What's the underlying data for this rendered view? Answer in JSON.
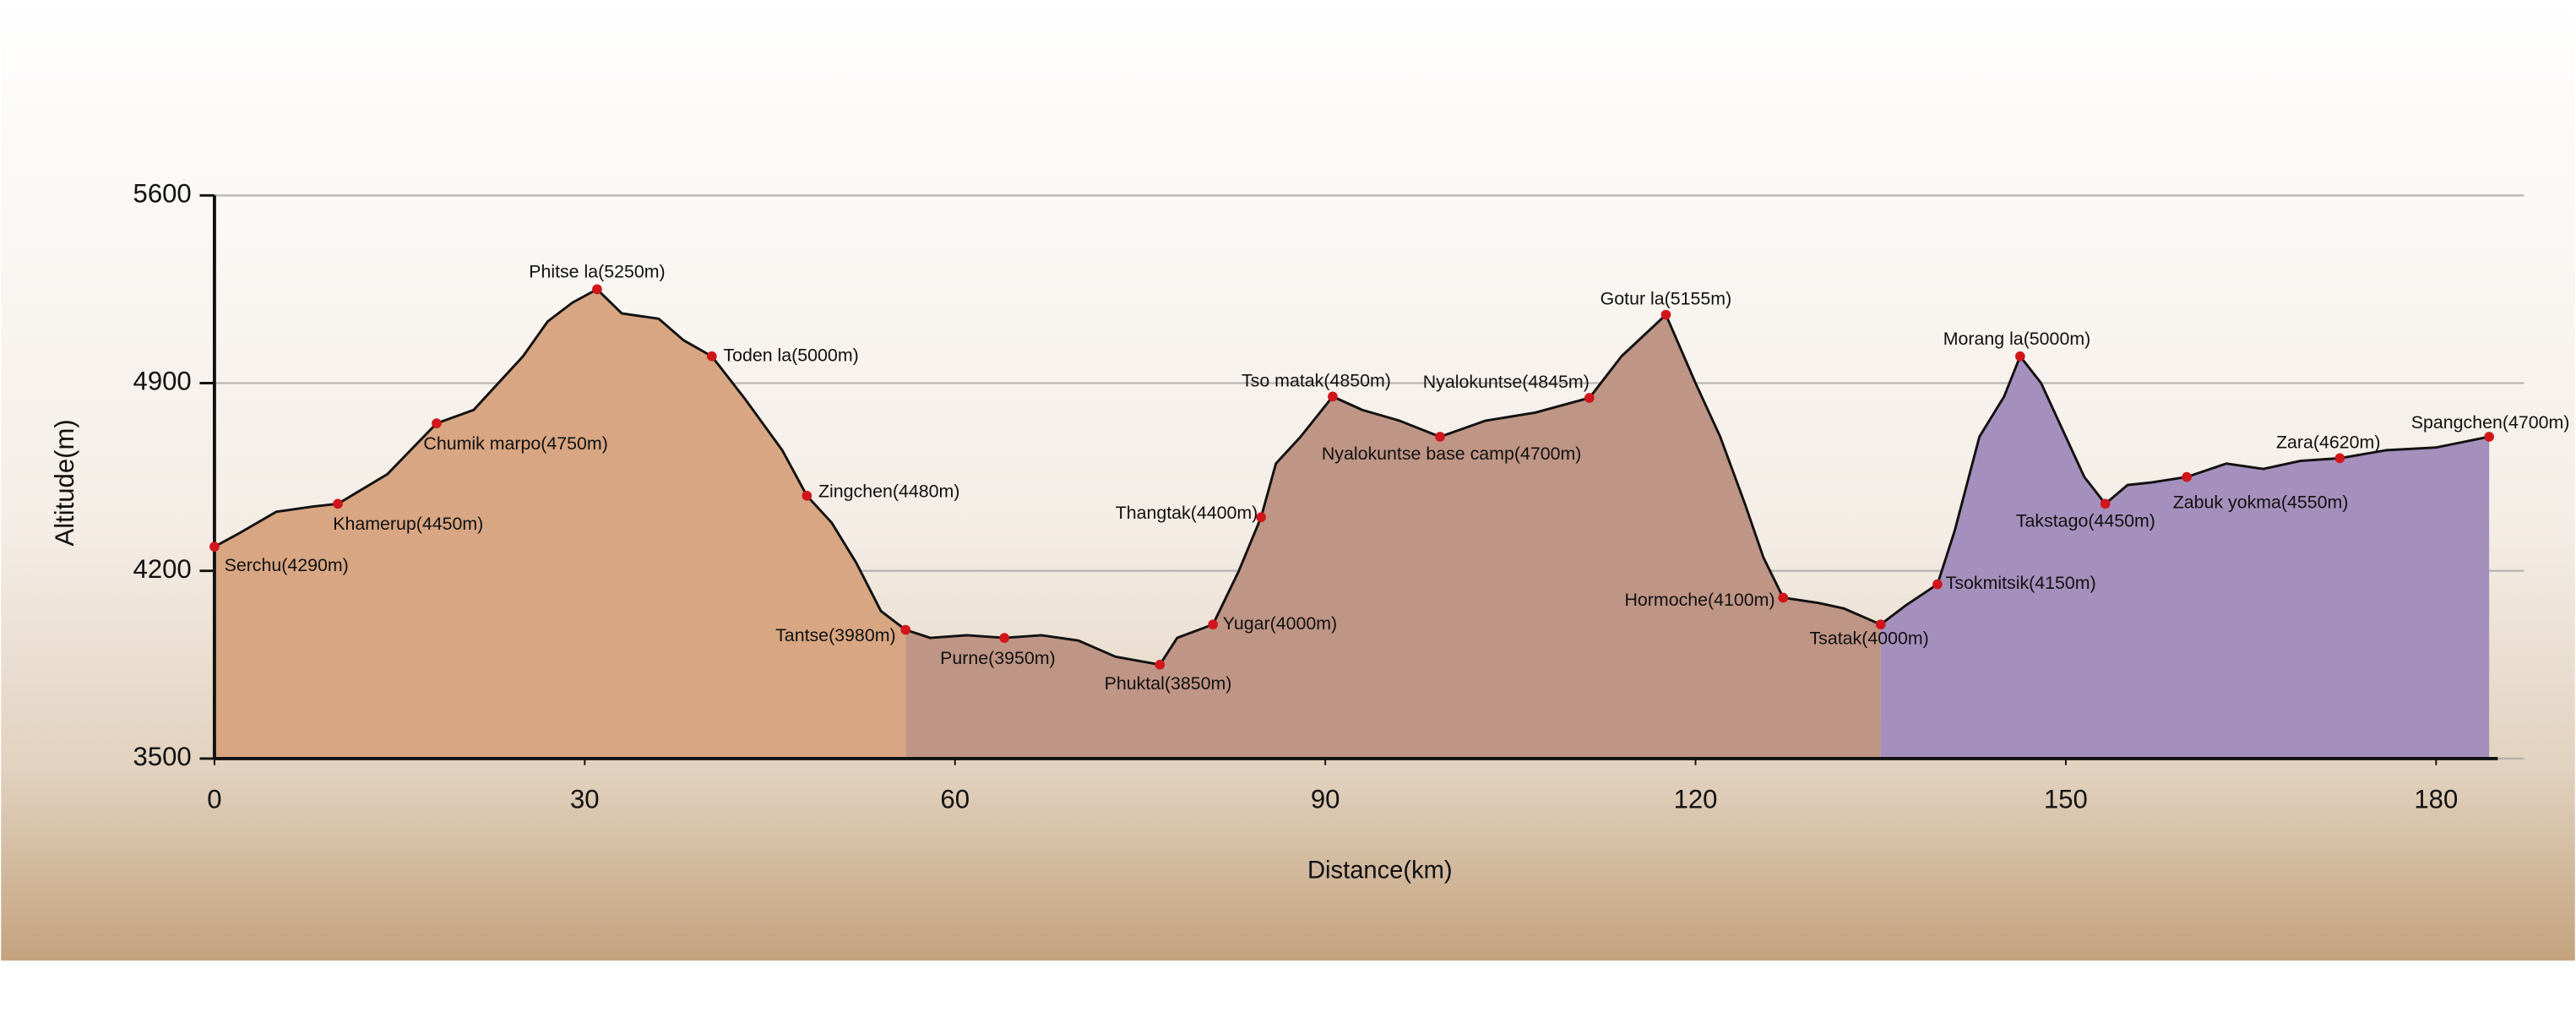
{
  "chart_data": {
    "type": "area",
    "x_label": "Distance(km)",
    "y_label": "Altitude(m)",
    "xlim": [
      0,
      185
    ],
    "ylim": [
      3500,
      5600
    ],
    "xticks": [
      0,
      30,
      60,
      90,
      120,
      150,
      180
    ],
    "yticks": [
      3500,
      4200,
      4900,
      5600
    ],
    "grid": true,
    "line_color": "#111111",
    "point_color": "#d0161b",
    "series": [
      {
        "color": "#d8a682",
        "x": [
          0,
          2,
          5,
          8,
          10,
          14,
          18,
          21,
          23,
          25,
          27,
          29,
          31,
          33,
          36,
          38,
          40.3,
          43,
          46,
          48,
          50,
          52,
          54,
          56
        ],
        "values": [
          4290,
          4340,
          4420,
          4440,
          4450,
          4560,
          4750,
          4800,
          4900,
          5000,
          5130,
          5200,
          5250,
          5160,
          5140,
          5060,
          5000,
          4840,
          4650,
          4480,
          4380,
          4230,
          4050,
          3980
        ]
      },
      {
        "color": "#bf9585",
        "x": [
          56,
          58,
          61,
          64,
          67,
          70,
          73,
          76.6,
          78,
          80.9,
          83,
          84.8,
          86,
          88,
          90.6,
          93,
          96,
          99.3,
          103,
          107,
          111.4,
          114,
          117.6,
          120,
          122,
          124,
          125.5,
          127.1,
          130,
          132,
          135
        ],
        "values": [
          3980,
          3950,
          3960,
          3950,
          3960,
          3940,
          3880,
          3850,
          3950,
          4000,
          4200,
          4400,
          4600,
          4700,
          4850,
          4800,
          4760,
          4700,
          4760,
          4790,
          4845,
          5000,
          5155,
          4900,
          4700,
          4450,
          4250,
          4100,
          4080,
          4060,
          4000
        ]
      },
      {
        "color": "#a58fbc",
        "x": [
          135,
          137,
          139.6,
          141,
          143,
          145,
          146.3,
          148,
          150,
          151.5,
          153.2,
          155,
          157,
          159.8,
          163,
          166,
          169,
          172.2,
          176,
          180,
          184.3
        ],
        "values": [
          4000,
          4070,
          4150,
          4350,
          4700,
          4850,
          5000,
          4900,
          4700,
          4550,
          4450,
          4520,
          4530,
          4550,
          4600,
          4580,
          4610,
          4620,
          4650,
          4660,
          4700
        ]
      }
    ],
    "waypoints": [
      {
        "label": "Serchu(4290m)",
        "x": 0,
        "y": 4290
      },
      {
        "label": "Khamerup(4450m)",
        "x": 10,
        "y": 4450
      },
      {
        "label": "Chumik marpo(4750m)",
        "x": 18,
        "y": 4750
      },
      {
        "label": "Phitse la(5250m)",
        "x": 31,
        "y": 5250
      },
      {
        "label": "Toden la(5000m)",
        "x": 40.3,
        "y": 5000
      },
      {
        "label": "Zingchen(4480m)",
        "x": 48,
        "y": 4480
      },
      {
        "label": "Tantse(3980m)",
        "x": 56,
        "y": 3980
      },
      {
        "label": "Purne(3950m)",
        "x": 64,
        "y": 3950
      },
      {
        "label": "Phuktal(3850m)",
        "x": 76.6,
        "y": 3850
      },
      {
        "label": "Yugar(4000m)",
        "x": 80.9,
        "y": 4000
      },
      {
        "label": "Thangtak(4400m)",
        "x": 84.8,
        "y": 4400
      },
      {
        "label": "Tso matak(4850m)",
        "x": 90.6,
        "y": 4850
      },
      {
        "label": "Nyalokuntse base camp(4700m)",
        "x": 99.3,
        "y": 4700
      },
      {
        "label": "Nyalokuntse(4845m)",
        "x": 111.4,
        "y": 4845
      },
      {
        "label": "Gotur la(5155m)",
        "x": 117.6,
        "y": 5155
      },
      {
        "label": "Hormoche(4100m)",
        "x": 127.1,
        "y": 4100
      },
      {
        "label": "Tsatak(4000m)",
        "x": 135,
        "y": 4000
      },
      {
        "label": "Tsokmitsik(4150m)",
        "x": 139.6,
        "y": 4150
      },
      {
        "label": "Morang la(5000m)",
        "x": 146.3,
        "y": 5000
      },
      {
        "label": "Takstago(4450m)",
        "x": 153.2,
        "y": 4450
      },
      {
        "label": "Zabuk yokma(4550m)",
        "x": 159.8,
        "y": 4550
      },
      {
        "label": "Zara(4620m)",
        "x": 172.2,
        "y": 4620
      },
      {
        "label": "Spangchen(4700m)",
        "x": 184.3,
        "y": 4700
      }
    ]
  }
}
